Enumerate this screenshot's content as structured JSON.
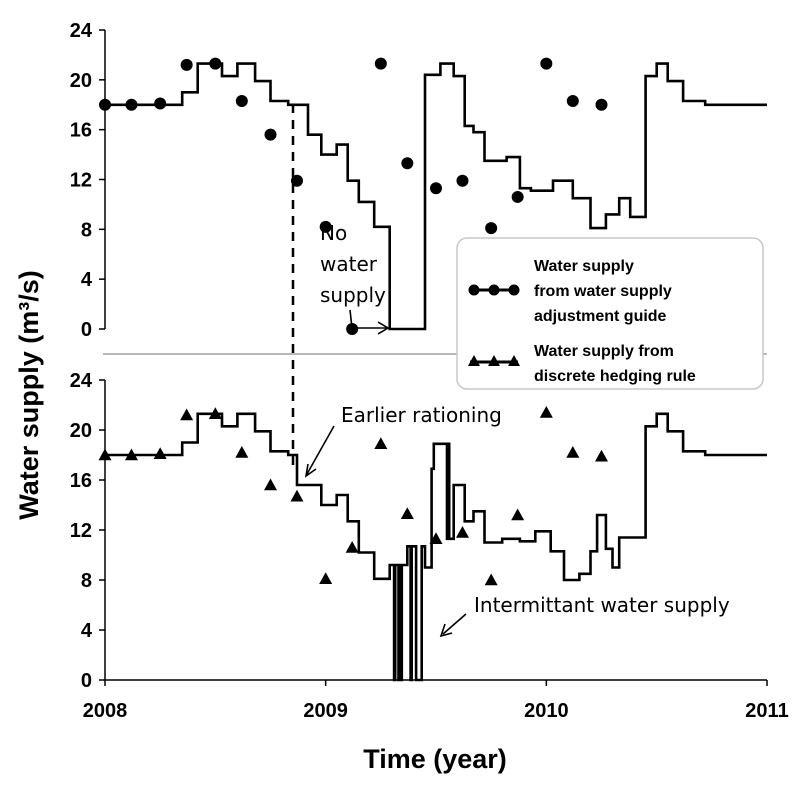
{
  "chart_data": [
    {
      "panel": "top",
      "type": "line",
      "series_name_lines": [
        "Water supply",
        "from water supply",
        "adjustment guide"
      ],
      "marker": "circle",
      "ylim": [
        0,
        24
      ],
      "yticks": [
        0,
        4,
        8,
        12,
        16,
        20,
        24
      ],
      "step_points": [
        [
          2008.0,
          18.0
        ],
        [
          2008.35,
          18.0
        ],
        [
          2008.35,
          19.0
        ],
        [
          2008.42,
          19.0
        ],
        [
          2008.42,
          21.3
        ],
        [
          2008.53,
          21.3
        ],
        [
          2008.53,
          20.3
        ],
        [
          2008.6,
          20.3
        ],
        [
          2008.6,
          21.3
        ],
        [
          2008.68,
          21.3
        ],
        [
          2008.68,
          19.9
        ],
        [
          2008.75,
          19.9
        ],
        [
          2008.75,
          18.3
        ],
        [
          2008.83,
          18.3
        ],
        [
          2008.83,
          18.0
        ],
        [
          2008.92,
          18.0
        ],
        [
          2008.92,
          15.6
        ],
        [
          2008.98,
          15.6
        ],
        [
          2008.98,
          14.0
        ],
        [
          2009.05,
          14.0
        ],
        [
          2009.05,
          14.8
        ],
        [
          2009.1,
          14.8
        ],
        [
          2009.1,
          11.9
        ],
        [
          2009.15,
          11.9
        ],
        [
          2009.15,
          10.2
        ],
        [
          2009.22,
          10.2
        ],
        [
          2009.22,
          8.2
        ],
        [
          2009.29,
          8.2
        ],
        [
          2009.29,
          0.0
        ],
        [
          2009.45,
          0.0
        ],
        [
          2009.45,
          20.4
        ],
        [
          2009.52,
          20.4
        ],
        [
          2009.52,
          21.3
        ],
        [
          2009.58,
          21.3
        ],
        [
          2009.58,
          20.3
        ],
        [
          2009.63,
          20.3
        ],
        [
          2009.63,
          16.3
        ],
        [
          2009.67,
          16.3
        ],
        [
          2009.67,
          15.8
        ],
        [
          2009.72,
          15.8
        ],
        [
          2009.72,
          13.5
        ],
        [
          2009.82,
          13.5
        ],
        [
          2009.82,
          13.8
        ],
        [
          2009.88,
          13.8
        ],
        [
          2009.88,
          11.3
        ],
        [
          2009.93,
          11.3
        ],
        [
          2009.93,
          11.1
        ],
        [
          2010.03,
          11.1
        ],
        [
          2010.03,
          11.9
        ],
        [
          2010.12,
          11.9
        ],
        [
          2010.12,
          10.5
        ],
        [
          2010.2,
          10.5
        ],
        [
          2010.2,
          8.1
        ],
        [
          2010.27,
          8.1
        ],
        [
          2010.27,
          9.2
        ],
        [
          2010.33,
          9.2
        ],
        [
          2010.33,
          10.5
        ],
        [
          2010.38,
          10.5
        ],
        [
          2010.38,
          9.0
        ],
        [
          2010.45,
          9.0
        ],
        [
          2010.45,
          20.3
        ],
        [
          2010.5,
          20.3
        ],
        [
          2010.5,
          21.3
        ],
        [
          2010.55,
          21.3
        ],
        [
          2010.55,
          19.9
        ],
        [
          2010.62,
          19.9
        ],
        [
          2010.62,
          18.3
        ],
        [
          2010.72,
          18.3
        ],
        [
          2010.72,
          18.0
        ],
        [
          2011.0,
          18.0
        ]
      ],
      "markers": [
        [
          2008.0,
          18.0
        ],
        [
          2008.12,
          18.0
        ],
        [
          2008.25,
          18.1
        ],
        [
          2008.37,
          21.2
        ],
        [
          2008.5,
          21.3
        ],
        [
          2008.62,
          18.3
        ],
        [
          2008.75,
          15.6
        ],
        [
          2008.87,
          11.9
        ],
        [
          2009.0,
          8.2
        ],
        [
          2009.12,
          0.0
        ],
        [
          2009.25,
          21.3
        ],
        [
          2009.37,
          13.3
        ],
        [
          2009.5,
          11.3
        ],
        [
          2009.62,
          11.9
        ],
        [
          2009.75,
          8.1
        ],
        [
          2009.87,
          10.6
        ],
        [
          2010.0,
          21.3
        ],
        [
          2010.12,
          18.3
        ],
        [
          2010.25,
          18.0
        ]
      ]
    },
    {
      "panel": "bottom",
      "type": "line",
      "series_name_lines": [
        "Water supply from",
        "discrete hedging rule"
      ],
      "marker": "triangle",
      "ylim": [
        0,
        24
      ],
      "yticks": [
        0,
        4,
        8,
        12,
        16,
        20,
        24
      ],
      "xticks": [
        "2008",
        "2009",
        "2010",
        "2011"
      ],
      "step_points": [
        [
          2008.0,
          18.0
        ],
        [
          2008.35,
          18.0
        ],
        [
          2008.35,
          19.0
        ],
        [
          2008.42,
          19.0
        ],
        [
          2008.42,
          21.3
        ],
        [
          2008.53,
          21.3
        ],
        [
          2008.53,
          20.3
        ],
        [
          2008.6,
          20.3
        ],
        [
          2008.6,
          21.3
        ],
        [
          2008.68,
          21.3
        ],
        [
          2008.68,
          19.9
        ],
        [
          2008.75,
          19.9
        ],
        [
          2008.75,
          18.3
        ],
        [
          2008.83,
          18.3
        ],
        [
          2008.83,
          18.0
        ],
        [
          2008.87,
          18.0
        ],
        [
          2008.87,
          15.6
        ],
        [
          2008.98,
          15.6
        ],
        [
          2008.98,
          14.0
        ],
        [
          2009.05,
          14.0
        ],
        [
          2009.05,
          14.8
        ],
        [
          2009.1,
          14.8
        ],
        [
          2009.1,
          12.7
        ],
        [
          2009.15,
          12.7
        ],
        [
          2009.15,
          10.2
        ],
        [
          2009.22,
          10.2
        ],
        [
          2009.22,
          8.1
        ],
        [
          2009.29,
          8.1
        ],
        [
          2009.29,
          9.2
        ],
        [
          2009.31,
          9.2
        ],
        [
          2009.31,
          0.0
        ],
        [
          2009.315,
          0.0
        ],
        [
          2009.315,
          9.2
        ],
        [
          2009.33,
          9.2
        ],
        [
          2009.33,
          0.0
        ],
        [
          2009.335,
          0.0
        ],
        [
          2009.335,
          9.2
        ],
        [
          2009.34,
          9.2
        ],
        [
          2009.34,
          0.0
        ],
        [
          2009.345,
          0.0
        ],
        [
          2009.345,
          9.2
        ],
        [
          2009.37,
          9.2
        ],
        [
          2009.37,
          10.7
        ],
        [
          2009.385,
          10.7
        ],
        [
          2009.385,
          0.0
        ],
        [
          2009.39,
          0.0
        ],
        [
          2009.39,
          10.7
        ],
        [
          2009.41,
          10.7
        ],
        [
          2009.41,
          0.0
        ],
        [
          2009.435,
          0.0
        ],
        [
          2009.435,
          10.7
        ],
        [
          2009.45,
          10.7
        ],
        [
          2009.45,
          9.0
        ],
        [
          2009.48,
          9.0
        ],
        [
          2009.48,
          16.9
        ],
        [
          2009.49,
          16.9
        ],
        [
          2009.49,
          18.9
        ],
        [
          2009.55,
          18.9
        ],
        [
          2009.55,
          11.3
        ],
        [
          2009.555,
          11.3
        ],
        [
          2009.555,
          18.9
        ],
        [
          2009.56,
          18.9
        ],
        [
          2009.56,
          11.3
        ],
        [
          2009.58,
          11.3
        ],
        [
          2009.58,
          15.6
        ],
        [
          2009.63,
          15.6
        ],
        [
          2009.63,
          12.7
        ],
        [
          2009.67,
          12.7
        ],
        [
          2009.67,
          13.5
        ],
        [
          2009.72,
          13.5
        ],
        [
          2009.72,
          11.0
        ],
        [
          2009.8,
          11.0
        ],
        [
          2009.8,
          11.3
        ],
        [
          2009.88,
          11.3
        ],
        [
          2009.88,
          11.1
        ],
        [
          2009.95,
          11.1
        ],
        [
          2009.95,
          11.9
        ],
        [
          2010.02,
          11.9
        ],
        [
          2010.02,
          10.3
        ],
        [
          2010.08,
          10.3
        ],
        [
          2010.08,
          8.0
        ],
        [
          2010.15,
          8.0
        ],
        [
          2010.15,
          8.5
        ],
        [
          2010.2,
          8.5
        ],
        [
          2010.2,
          10.3
        ],
        [
          2010.23,
          10.3
        ],
        [
          2010.23,
          13.2
        ],
        [
          2010.27,
          13.2
        ],
        [
          2010.27,
          10.5
        ],
        [
          2010.3,
          10.5
        ],
        [
          2010.3,
          9.0
        ],
        [
          2010.33,
          9.0
        ],
        [
          2010.33,
          11.4
        ],
        [
          2010.45,
          11.4
        ],
        [
          2010.45,
          20.3
        ],
        [
          2010.5,
          20.3
        ],
        [
          2010.5,
          21.3
        ],
        [
          2010.55,
          21.3
        ],
        [
          2010.55,
          19.9
        ],
        [
          2010.62,
          19.9
        ],
        [
          2010.62,
          18.3
        ],
        [
          2010.72,
          18.3
        ],
        [
          2010.72,
          18.0
        ],
        [
          2011.0,
          18.0
        ]
      ],
      "markers": [
        [
          2008.0,
          18.0
        ],
        [
          2008.12,
          18.0
        ],
        [
          2008.25,
          18.1
        ],
        [
          2008.37,
          21.2
        ],
        [
          2008.5,
          21.3
        ],
        [
          2008.62,
          18.2
        ],
        [
          2008.75,
          15.6
        ],
        [
          2008.87,
          14.7
        ],
        [
          2009.0,
          8.1
        ],
        [
          2009.12,
          10.6
        ],
        [
          2009.25,
          18.9
        ],
        [
          2009.37,
          13.3
        ],
        [
          2009.5,
          11.3
        ],
        [
          2009.62,
          11.8
        ],
        [
          2009.75,
          8.0
        ],
        [
          2009.87,
          13.2
        ],
        [
          2010.0,
          21.4
        ],
        [
          2010.12,
          18.2
        ],
        [
          2010.25,
          17.9
        ]
      ]
    }
  ],
  "ylabel": "Water supply (m³/s)",
  "xlabel": "Time (year)",
  "annotations": {
    "no_supply_lines": [
      "No",
      "water",
      "supply"
    ],
    "earlier_rationing": "Earlier rationing",
    "intermittent": "Intermittant water supply"
  },
  "colors": {
    "line": "#000000",
    "grid_box": "#d0d0d0",
    "divider": "#a0a0a0"
  }
}
